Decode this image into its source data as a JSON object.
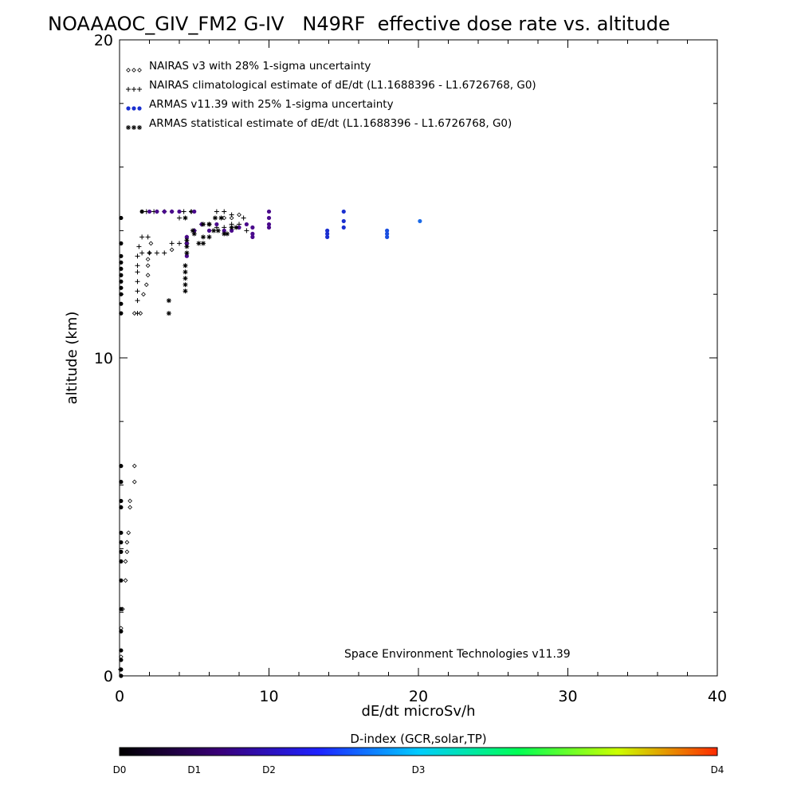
{
  "chart_data": {
    "type": "scatter",
    "title": "NOAAAOC_GIV_FM2 G-IV   N49RF  effective dose rate vs. altitude",
    "xlabel": "dE/dt microSv/h",
    "ylabel": "altitude (km)",
    "xlim": [
      0,
      40
    ],
    "ylim": [
      0,
      20
    ],
    "x_ticks": [
      "0",
      "10",
      "20",
      "30",
      "40"
    ],
    "y_ticks": [
      "0",
      "10",
      "20"
    ],
    "legend": {
      "placement": "top-left",
      "entries": [
        {
          "marker": "diamond",
          "color": "#000000",
          "label": "NAIRAS v3 with 28% 1-sigma uncertainty"
        },
        {
          "marker": "plus",
          "color": "#000000",
          "label": "NAIRAS climatological estimate of dE/dt (L1.1688396 - L1.6726768, G0)"
        },
        {
          "marker": "dot",
          "color": "#1a2fd0",
          "label": "ARMAS v11.39 with 25% 1-sigma uncertainty"
        },
        {
          "marker": "asterisk",
          "color": "#000000",
          "label": "ARMAS statistical estimate of dE/dt (L1.1688396 - L1.6726768, G0)"
        }
      ]
    },
    "annotation": "Space Environment Technologies v11.39",
    "colorbar": {
      "title": "D-index (GCR,solar,TP)",
      "labels": [
        {
          "text": "D0",
          "pos": 0.0
        },
        {
          "text": "D1",
          "pos": 0.125
        },
        {
          "text": "D2",
          "pos": 0.25
        },
        {
          "text": "D3",
          "pos": 0.5
        },
        {
          "text": "D4",
          "pos": 1.0
        }
      ],
      "stops": [
        "#000000",
        "#3a0078",
        "#1e22ff",
        "#00ccff",
        "#00ff55",
        "#ccff00",
        "#ff2a00"
      ]
    },
    "series": [
      {
        "name": "NAIRAS v3 with 28% 1-sigma uncertainty",
        "marker": "diamond",
        "points": [
          [
            1.0,
            6.6
          ],
          [
            1.0,
            6.1
          ],
          [
            0.7,
            5.5
          ],
          [
            0.7,
            5.3
          ],
          [
            0.6,
            4.5
          ],
          [
            0.5,
            4.2
          ],
          [
            0.5,
            3.9
          ],
          [
            0.4,
            3.6
          ],
          [
            0.4,
            3.0
          ],
          [
            0.2,
            2.1
          ],
          [
            0.1,
            1.5
          ],
          [
            0.1,
            0.6
          ],
          [
            0.05,
            0.2
          ],
          [
            1.0,
            11.4
          ],
          [
            1.4,
            11.4
          ],
          [
            1.6,
            12.0
          ],
          [
            1.8,
            12.3
          ],
          [
            1.9,
            12.6
          ],
          [
            1.9,
            12.9
          ],
          [
            1.9,
            13.1
          ],
          [
            2.0,
            13.3
          ],
          [
            2.1,
            13.6
          ],
          [
            3.5,
            13.4
          ],
          [
            4.5,
            13.8
          ],
          [
            5.0,
            14.0
          ],
          [
            5.5,
            14.2
          ],
          [
            6.0,
            14.2
          ],
          [
            7.0,
            14.4
          ],
          [
            4.8,
            14.6
          ],
          [
            3.5,
            14.6
          ],
          [
            2.5,
            14.6
          ],
          [
            7.5,
            14.4
          ],
          [
            8.0,
            14.5
          ]
        ]
      },
      {
        "name": "NAIRAS climatological estimate of dE/dt (L1.1688396 - L1.6726768, G0)",
        "marker": "plus",
        "points": [
          [
            1.2,
            11.4
          ],
          [
            1.2,
            11.8
          ],
          [
            1.2,
            12.1
          ],
          [
            1.2,
            12.4
          ],
          [
            1.2,
            12.7
          ],
          [
            1.2,
            12.9
          ],
          [
            1.2,
            13.2
          ],
          [
            1.3,
            13.5
          ],
          [
            1.5,
            13.8
          ],
          [
            1.9,
            13.8
          ],
          [
            1.5,
            13.3
          ],
          [
            2.0,
            13.3
          ],
          [
            2.5,
            13.3
          ],
          [
            3.0,
            13.3
          ],
          [
            3.5,
            13.6
          ],
          [
            4.0,
            13.6
          ],
          [
            4.5,
            13.6
          ],
          [
            5.0,
            14.0
          ],
          [
            5.5,
            14.2
          ],
          [
            6.0,
            14.2
          ],
          [
            6.5,
            14.1
          ],
          [
            7.0,
            14.1
          ],
          [
            7.5,
            14.2
          ],
          [
            8.0,
            14.2
          ],
          [
            8.5,
            14.0
          ],
          [
            4.3,
            14.6
          ],
          [
            4.8,
            14.6
          ],
          [
            6.5,
            14.6
          ],
          [
            7.0,
            14.6
          ],
          [
            7.5,
            14.5
          ],
          [
            8.3,
            14.4
          ],
          [
            4.0,
            14.4
          ],
          [
            3.0,
            14.6
          ],
          [
            2.3,
            14.6
          ],
          [
            1.8,
            14.6
          ]
        ]
      },
      {
        "name": "ARMAS v11.39 with 25% 1-sigma uncertainty",
        "marker": "dot",
        "points": [
          [
            0.1,
            14.4
          ],
          [
            0.1,
            13.6
          ],
          [
            0.1,
            13.2
          ],
          [
            0.1,
            13.0
          ],
          [
            0.1,
            12.8
          ],
          [
            0.1,
            12.6
          ],
          [
            0.1,
            12.4
          ],
          [
            0.1,
            12.2
          ],
          [
            0.1,
            12.0
          ],
          [
            0.1,
            11.7
          ],
          [
            0.1,
            11.4
          ],
          [
            0.1,
            6.6
          ],
          [
            0.1,
            6.1
          ],
          [
            0.1,
            5.5
          ],
          [
            0.1,
            5.3
          ],
          [
            0.1,
            4.5
          ],
          [
            0.1,
            4.2
          ],
          [
            0.1,
            3.9
          ],
          [
            0.1,
            3.6
          ],
          [
            0.1,
            3.0
          ],
          [
            0.1,
            2.1
          ],
          [
            0.1,
            1.4
          ],
          [
            0.1,
            0.8
          ],
          [
            0.1,
            0.5
          ],
          [
            0.1,
            0.2
          ],
          [
            0.1,
            0.0
          ],
          [
            1.5,
            14.6
          ],
          [
            2.0,
            14.6
          ],
          [
            2.5,
            14.6
          ],
          [
            3.0,
            14.6
          ],
          [
            3.5,
            14.6
          ],
          [
            4.0,
            14.6
          ],
          [
            5.0,
            14.6
          ],
          [
            4.5,
            13.8
          ],
          [
            4.5,
            13.6
          ],
          [
            4.5,
            13.2
          ],
          [
            5.0,
            14.0
          ],
          [
            5.5,
            14.2
          ],
          [
            6.0,
            14.0
          ],
          [
            6.5,
            14.2
          ],
          [
            7.0,
            14.0
          ],
          [
            7.5,
            14.0
          ],
          [
            8.0,
            14.1
          ],
          [
            8.5,
            14.2
          ],
          [
            8.9,
            13.9
          ],
          [
            8.9,
            13.8
          ],
          [
            8.9,
            14.1
          ],
          [
            10.0,
            14.6
          ],
          [
            10.0,
            14.4
          ],
          [
            10.0,
            14.2
          ],
          [
            10.0,
            14.1
          ],
          [
            13.9,
            13.9
          ],
          [
            13.9,
            14.0
          ],
          [
            13.9,
            13.8
          ],
          [
            15.0,
            14.6
          ],
          [
            15.0,
            14.3
          ],
          [
            15.0,
            14.1
          ],
          [
            17.9,
            14.0
          ],
          [
            17.9,
            13.9
          ],
          [
            17.9,
            13.8
          ],
          [
            20.1,
            14.3
          ]
        ]
      },
      {
        "name": "ARMAS statistical estimate of dE/dt (L1.1688396 - L1.6726768, G0)",
        "marker": "asterisk",
        "points": [
          [
            3.3,
            11.4
          ],
          [
            3.3,
            11.8
          ],
          [
            4.4,
            12.1
          ],
          [
            4.4,
            12.3
          ],
          [
            4.4,
            12.5
          ],
          [
            4.4,
            12.7
          ],
          [
            4.4,
            12.9
          ],
          [
            4.5,
            13.3
          ],
          [
            4.5,
            13.5
          ],
          [
            4.5,
            13.7
          ],
          [
            5.3,
            13.6
          ],
          [
            5.6,
            13.6
          ],
          [
            5.6,
            13.8
          ],
          [
            6.0,
            13.8
          ],
          [
            6.3,
            14.0
          ],
          [
            6.6,
            14.0
          ],
          [
            7.0,
            13.9
          ],
          [
            7.2,
            13.9
          ],
          [
            7.5,
            14.1
          ],
          [
            7.8,
            14.1
          ],
          [
            5.6,
            14.2
          ],
          [
            6.0,
            14.2
          ],
          [
            6.4,
            14.4
          ],
          [
            6.8,
            14.4
          ],
          [
            4.4,
            14.4
          ],
          [
            4.9,
            14.0
          ],
          [
            5.0,
            13.9
          ]
        ]
      }
    ]
  }
}
